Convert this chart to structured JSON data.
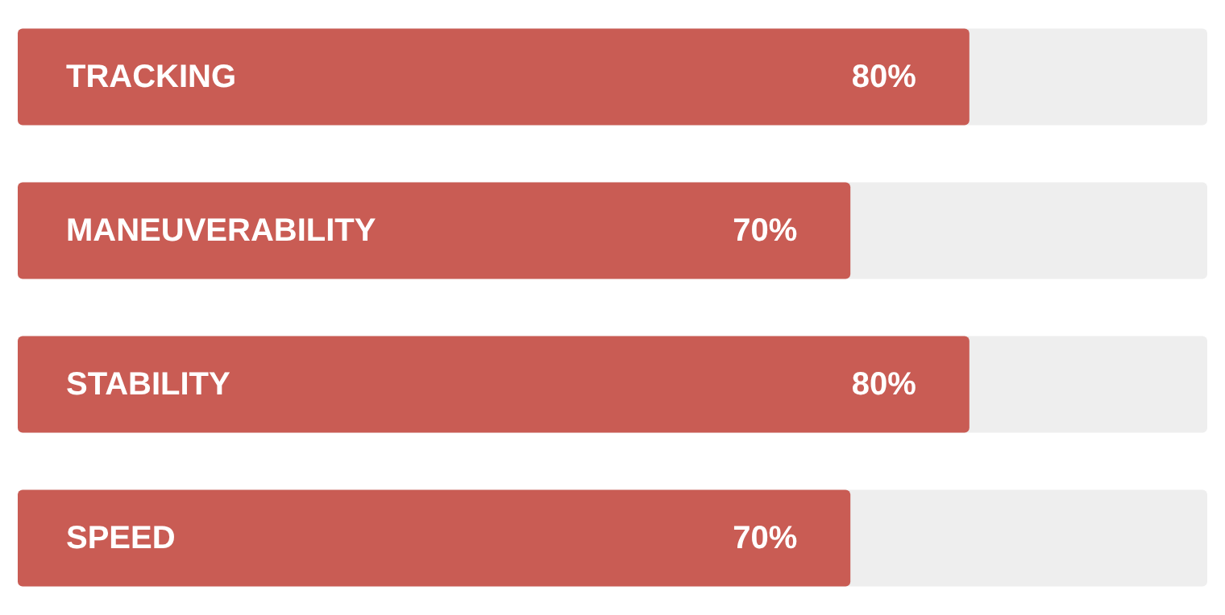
{
  "chart_data": {
    "type": "bar",
    "orientation": "horizontal",
    "categories": [
      "TRACKING",
      "MANEUVERABILITY",
      "STABILITY",
      "SPEED"
    ],
    "values": [
      80,
      70,
      80,
      70
    ],
    "color": "#c95c54",
    "value_labels": [
      "80%",
      "70%",
      "80%",
      "70%"
    ],
    "xlim": [
      0,
      100
    ],
    "tick_labels": "y"
  }
}
